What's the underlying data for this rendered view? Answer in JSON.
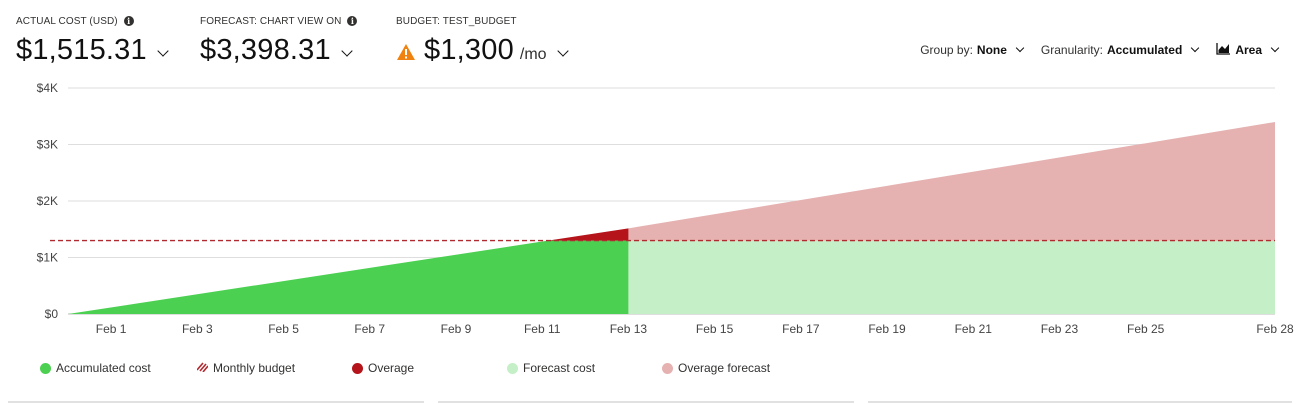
{
  "kpis": {
    "actual": {
      "label": "ACTUAL COST (USD)",
      "value": "$1,515.31"
    },
    "forecast": {
      "label": "FORECAST: CHART VIEW ON",
      "value": "$3,398.31"
    },
    "budget": {
      "label": "BUDGET: TEST_BUDGET",
      "value": "$1,300",
      "unit": "/mo"
    }
  },
  "controls": {
    "group_by": {
      "label": "Group by:",
      "value": "None"
    },
    "granularity": {
      "label": "Granularity:",
      "value": "Accumulated"
    },
    "view": {
      "value": "Area"
    }
  },
  "legend": {
    "accumulated": "Accumulated cost",
    "budget": "Monthly budget",
    "overage": "Overage",
    "forecast": "Forecast cost",
    "overage_forecast": "Overage forecast"
  },
  "colors": {
    "accumulated": "#4cd052",
    "overage": "#b4141a",
    "forecast": "#c4efc7",
    "overage_forecast": "#e6b1b1",
    "budget_line": "#b02a30"
  },
  "chart_data": {
    "type": "area",
    "y_ticks": [
      "$0",
      "$1K",
      "$2K",
      "$3K",
      "$4K"
    ],
    "ylim": [
      0,
      4000
    ],
    "x_ticks": [
      "Feb 1",
      "Feb 3",
      "Feb 5",
      "Feb 7",
      "Feb 9",
      "Feb 11",
      "Feb 13",
      "Feb 15",
      "Feb 17",
      "Feb 19",
      "Feb 21",
      "Feb 23",
      "Feb 25",
      "Feb 28"
    ],
    "x_tick_days": [
      1,
      3,
      5,
      7,
      9,
      11,
      13,
      15,
      17,
      19,
      21,
      23,
      25,
      28
    ],
    "xlim": [
      0,
      28
    ],
    "budget": 1300,
    "actual": {
      "start_day": 0,
      "end_day": 13,
      "start_value": 0,
      "end_value": 1515.31
    },
    "forecast": {
      "start_day": 13,
      "end_day": 28,
      "start_value": 1515.31,
      "end_value": 3398.31
    },
    "grid": true,
    "legend_position": "bottom-left"
  }
}
